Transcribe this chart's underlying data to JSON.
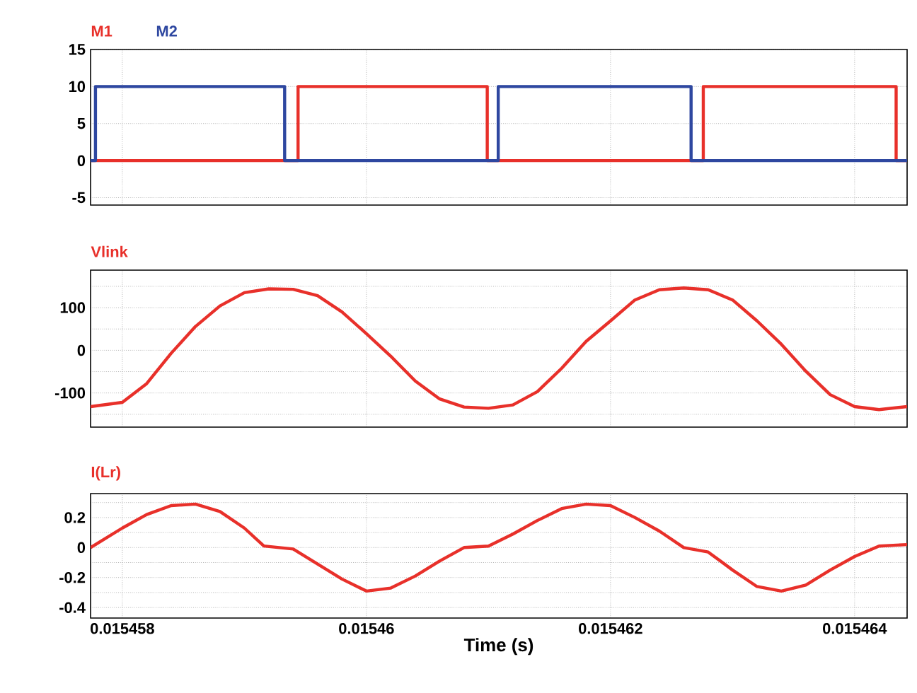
{
  "chart_data": [
    {
      "type": "line",
      "grid": true,
      "tick_labels": "y",
      "xlim": [
        0.01545774,
        0.01546443
      ],
      "ylim": [
        -6,
        15
      ],
      "xticks": [
        0.015458,
        0.01546,
        0.015462,
        0.015464
      ],
      "yticks": [
        -5,
        0,
        5,
        10,
        15
      ],
      "series": [
        {
          "name": "M1",
          "color": "#e8302a",
          "x": [
            0.01545774,
            0.01545944,
            0.01545944,
            0.01546099,
            0.01546099,
            0.01546276,
            0.01546276,
            0.01546434,
            0.01546434,
            0.01546443
          ],
          "values": [
            0,
            0,
            10,
            10,
            0,
            0,
            10,
            10,
            0,
            0
          ]
        },
        {
          "name": "M2",
          "color": "#2e47a0",
          "x": [
            0.01545774,
            0.01545778,
            0.01545778,
            0.01545933,
            0.01545933,
            0.01546108,
            0.01546108,
            0.01546266,
            0.01546266,
            0.01546443
          ],
          "values": [
            0,
            0,
            10,
            10,
            0,
            0,
            10,
            10,
            0,
            0
          ]
        }
      ]
    },
    {
      "type": "line",
      "grid": true,
      "tick_labels": "y",
      "xlim": [
        0.01545774,
        0.01546443
      ],
      "ylim": [
        -180,
        188
      ],
      "xticks": [
        0.015458,
        0.01546,
        0.015462,
        0.015464
      ],
      "yticks": [
        {
          "value": -150,
          "label": null
        },
        -100,
        {
          "value": -50,
          "label": null
        },
        0,
        {
          "value": 50,
          "label": null
        },
        100,
        {
          "value": 150,
          "label": null
        }
      ],
      "series": [
        {
          "name": "Vlink",
          "color": "#e8302a",
          "x": [
            0.01545774,
            0.015458,
            0.0154582,
            0.0154584,
            0.0154586,
            0.0154588,
            0.015459,
            0.0154592,
            0.0154594,
            0.0154596,
            0.0154598,
            0.01546,
            0.0154602,
            0.0154604,
            0.0154606,
            0.0154608,
            0.015461,
            0.0154612,
            0.0154614,
            0.0154616,
            0.0154618,
            0.015462,
            0.0154622,
            0.0154624,
            0.0154626,
            0.0154628,
            0.015463,
            0.0154632,
            0.0154634,
            0.0154636,
            0.0154638,
            0.015464,
            0.0154642,
            0.01546443
          ],
          "values": [
            -132,
            -122,
            -78,
            -7,
            56,
            104,
            135,
            144,
            143,
            128,
            90,
            39,
            -14,
            -72,
            -114,
            -133,
            -136,
            -128,
            -97,
            -42,
            21,
            69,
            118,
            142,
            146,
            142,
            118,
            69,
            14,
            -49,
            -104,
            -132,
            -139,
            -132
          ]
        }
      ]
    },
    {
      "type": "line",
      "grid": true,
      "xlabel": "Time (s)",
      "xlim": [
        0.01545774,
        0.01546443
      ],
      "ylim": [
        -0.47,
        0.36
      ],
      "xticks": [
        0.015458,
        0.01546,
        0.015462,
        0.015464
      ],
      "yticks": [
        -0.4,
        {
          "value": -0.3,
          "label": null
        },
        -0.2,
        {
          "value": -0.1,
          "label": null
        },
        0,
        {
          "value": 0.1,
          "label": null
        },
        0.2,
        {
          "value": 0.3,
          "label": null
        }
      ],
      "series": [
        {
          "name": "I(Lr)",
          "color": "#e8302a",
          "x": [
            0.01545774,
            0.015458,
            0.0154582,
            0.0154584,
            0.0154586,
            0.0154588,
            0.015459,
            0.01545916,
            0.0154594,
            0.0154596,
            0.0154598,
            0.01546,
            0.0154602,
            0.0154604,
            0.0154606,
            0.0154608,
            0.015461,
            0.0154612,
            0.0154614,
            0.0154616,
            0.0154618,
            0.015462,
            0.0154622,
            0.0154624,
            0.0154626,
            0.0154628,
            0.015463,
            0.0154632,
            0.0154634,
            0.0154636,
            0.0154638,
            0.015464,
            0.0154642,
            0.01546443
          ],
          "values": [
            0,
            0.13,
            0.22,
            0.28,
            0.29,
            0.24,
            0.13,
            0.01,
            -0.01,
            -0.11,
            -0.21,
            -0.29,
            -0.27,
            -0.19,
            -0.09,
            0,
            0.01,
            0.09,
            0.18,
            0.26,
            0.29,
            0.28,
            0.2,
            0.11,
            0,
            -0.03,
            -0.15,
            -0.26,
            -0.29,
            -0.25,
            -0.15,
            -0.06,
            0.01,
            0.02
          ]
        }
      ]
    }
  ]
}
